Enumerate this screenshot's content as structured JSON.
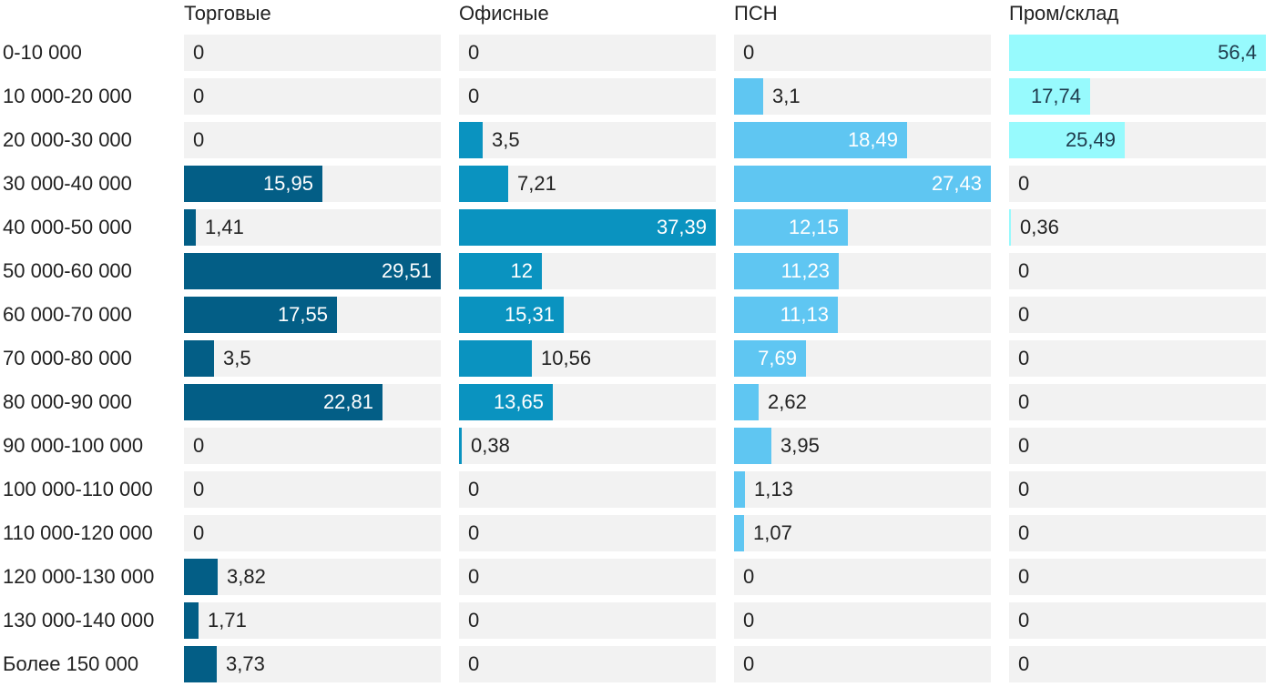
{
  "chart_data": {
    "type": "bar",
    "orientation": "horizontal",
    "layout": "small-multiples",
    "title": "",
    "categories": [
      "0-10 000",
      "10 000-20 000",
      "20 000-30 000",
      "30 000-40 000",
      "40 000-50 000",
      "50 000-60 000",
      "60 000-70 000",
      "70 000-80 000",
      "80 000-90 000",
      "90 000-100 000",
      "100 000-110 000",
      "110 000-120 000",
      "120 000-130 000",
      "130 000-140 000",
      "Более 150 000"
    ],
    "series": [
      {
        "name": "Торговые",
        "color": "#035e86",
        "xlim": [
          0,
          29.51
        ],
        "values": [
          0,
          0,
          0,
          15.95,
          1.41,
          29.51,
          17.55,
          3.5,
          22.81,
          0,
          0,
          0,
          3.82,
          1.71,
          3.73
        ],
        "labels": [
          "0",
          "0",
          "0",
          "15,95",
          "1,41",
          "29,51",
          "17,55",
          "3,5",
          "22,81",
          "0",
          "0",
          "0",
          "3,82",
          "1,71",
          "3,73"
        ]
      },
      {
        "name": "Офисные",
        "color": "#0a93c0",
        "xlim": [
          0,
          37.39
        ],
        "values": [
          0,
          0,
          3.5,
          7.21,
          37.39,
          12,
          15.31,
          10.56,
          13.65,
          0.38,
          0,
          0,
          0,
          0,
          0
        ],
        "labels": [
          "0",
          "0",
          "3,5",
          "7,21",
          "37,39",
          "12",
          "15,31",
          "10,56",
          "13,65",
          "0,38",
          "0",
          "0",
          "0",
          "0",
          "0"
        ]
      },
      {
        "name": "ПСН",
        "color": "#5fc6f2",
        "xlim": [
          0,
          27.43
        ],
        "values": [
          0,
          3.1,
          18.49,
          27.43,
          12.15,
          11.23,
          11.13,
          7.69,
          2.62,
          3.95,
          1.13,
          1.07,
          0,
          0,
          0
        ],
        "labels": [
          "0",
          "3,1",
          "18,49",
          "27,43",
          "12,15",
          "11,23",
          "11,13",
          "7,69",
          "2,62",
          "3,95",
          "1,13",
          "1,07",
          "0",
          "0",
          "0"
        ]
      },
      {
        "name": "Пром/склад",
        "color": "#97fafd",
        "xlim": [
          0,
          56.4
        ],
        "values": [
          56.4,
          17.74,
          25.49,
          0,
          0.36,
          0,
          0,
          0,
          0,
          0,
          0,
          0,
          0,
          0,
          0
        ],
        "labels": [
          "56,4",
          "17,74",
          "25,49",
          "0",
          "0,36",
          "0",
          "0",
          "0",
          "0",
          "0",
          "0",
          "0",
          "0",
          "0",
          "0"
        ]
      }
    ]
  }
}
